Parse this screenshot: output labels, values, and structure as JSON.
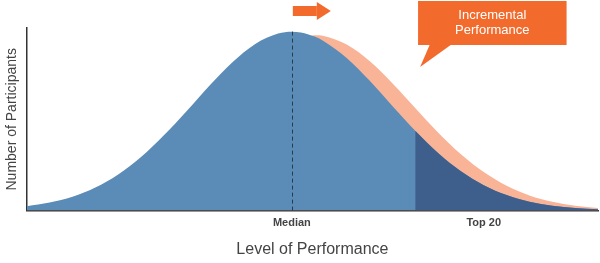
{
  "chart_data": {
    "type": "area",
    "x": [
      0,
      4,
      8,
      12,
      16,
      20,
      24,
      28,
      32,
      36,
      40,
      44,
      46.4,
      48,
      50.4,
      52,
      56,
      60,
      64,
      68,
      72,
      76,
      80,
      84,
      88,
      92,
      96,
      100
    ],
    "series": [
      {
        "color": "#f9b497",
        "values": [
          1.2,
          2.4,
          4.3,
          7.4,
          12.3,
          19.4,
          28.7,
          40.4,
          53.4,
          67.1,
          79.7,
          89.4,
          93.4,
          95,
          96,
          95.6,
          90.9,
          81.9,
          69.8,
          56.2,
          42.8,
          30.9,
          21.1,
          13.6,
          8.3,
          4.8,
          2.6,
          1.4
        ]
      },
      {
        "color": "#5b8bb7",
        "values": [
          2.4,
          4.4,
          7.6,
          12.6,
          19.8,
          29.3,
          41.2,
          54.5,
          68.5,
          81.3,
          91.3,
          97,
          98,
          97.6,
          95.3,
          92.8,
          83.6,
          71.2,
          57.3,
          43.7,
          31.5,
          21.5,
          13.9,
          8.5,
          4.9,
          2.7,
          1.4,
          0.7
        ]
      },
      {
        "color": "#3e5f8c",
        "values": [
          null,
          null,
          null,
          null,
          null,
          null,
          null,
          null,
          null,
          null,
          null,
          null,
          null,
          null,
          null,
          null,
          null,
          null,
          null,
          43.7,
          31.5,
          21.5,
          13.9,
          8.5,
          4.9,
          2.7,
          1.4,
          0.7
        ]
      }
    ],
    "xlim": [
      0,
      100
    ],
    "ylim": [
      0,
      100
    ],
    "xticks": [
      {
        "value": 46.4,
        "label": "Median"
      },
      {
        "value": 80,
        "label": "Top 20"
      }
    ],
    "yticks": [],
    "x_label": "Level of Performance",
    "y_label": "Number of Participants",
    "annotations": [
      {
        "text": "Incremental Performance",
        "color": "#f26a2c"
      }
    ],
    "grid": false,
    "tick_labels": "x"
  }
}
